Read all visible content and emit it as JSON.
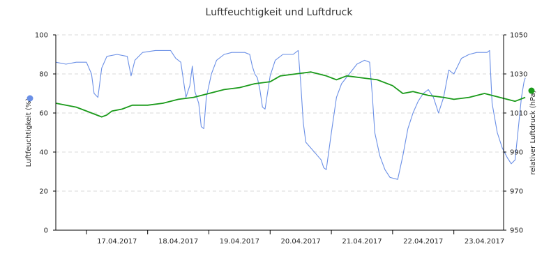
{
  "chart_data": {
    "type": "line",
    "title": "Luftfeuchtigkeit und Luftdruck",
    "x_axis": {
      "range": [
        "2017-04-16T12:00",
        "2017-04-23T19:30"
      ],
      "tick_labels": [
        "17.04.2017",
        "18.04.2017",
        "19.04.2017",
        "20.04.2017",
        "21.04.2017",
        "22.04.2017",
        "23.04.2017"
      ]
    },
    "y_left": {
      "label": "Luftfeuchtigkeit (%)",
      "ylim": [
        0,
        100
      ],
      "tick_labels": [
        "0",
        "20",
        "40",
        "60",
        "80",
        "100"
      ],
      "grid": true
    },
    "y_right": {
      "label": "relativer Luftdruck (hPa)",
      "ylim": [
        950,
        1050
      ],
      "tick_labels": [
        "950",
        "970",
        "990",
        "1010",
        "1030",
        "1050"
      ]
    },
    "legend": {
      "left_marker_color": "#6a8fe6",
      "right_marker_color": "#1a9a1a"
    },
    "series": [
      {
        "axis": "left",
        "color": "#6a8fe6",
        "points": [
          [
            "2017-04-16T12:00",
            86
          ],
          [
            "2017-04-16T16:00",
            85
          ],
          [
            "2017-04-16T20:00",
            86
          ],
          [
            "2017-04-17T00:00",
            86
          ],
          [
            "2017-04-17T02:00",
            80
          ],
          [
            "2017-04-17T03:00",
            70
          ],
          [
            "2017-04-17T04:30",
            68
          ],
          [
            "2017-04-17T06:00",
            83
          ],
          [
            "2017-04-17T08:00",
            89
          ],
          [
            "2017-04-17T12:00",
            90
          ],
          [
            "2017-04-17T16:00",
            89
          ],
          [
            "2017-04-17T17:30",
            79
          ],
          [
            "2017-04-17T19:00",
            87
          ],
          [
            "2017-04-17T22:00",
            91
          ],
          [
            "2017-04-18T03:00",
            92
          ],
          [
            "2017-04-18T09:00",
            92
          ],
          [
            "2017-04-18T11:00",
            88
          ],
          [
            "2017-04-18T13:00",
            86
          ],
          [
            "2017-04-18T15:00",
            68
          ],
          [
            "2017-04-18T16:30",
            74
          ],
          [
            "2017-04-18T17:30",
            84
          ],
          [
            "2017-04-18T18:30",
            71
          ],
          [
            "2017-04-18T20:00",
            65
          ],
          [
            "2017-04-18T21:00",
            53
          ],
          [
            "2017-04-18T22:00",
            52
          ],
          [
            "2017-04-18T23:00",
            68
          ],
          [
            "2017-04-19T01:00",
            80
          ],
          [
            "2017-04-19T03:00",
            87
          ],
          [
            "2017-04-19T06:00",
            90
          ],
          [
            "2017-04-19T09:00",
            91
          ],
          [
            "2017-04-19T14:00",
            91
          ],
          [
            "2017-04-19T16:00",
            90
          ],
          [
            "2017-04-19T17:00",
            84
          ],
          [
            "2017-04-19T18:00",
            80
          ],
          [
            "2017-04-19T19:00",
            78
          ],
          [
            "2017-04-19T20:00",
            72
          ],
          [
            "2017-04-19T21:00",
            63
          ],
          [
            "2017-04-19T22:00",
            62
          ],
          [
            "2017-04-20T00:00",
            79
          ],
          [
            "2017-04-20T02:00",
            87
          ],
          [
            "2017-04-20T05:00",
            90
          ],
          [
            "2017-04-20T09:00",
            90
          ],
          [
            "2017-04-20T11:00",
            92
          ],
          [
            "2017-04-20T12:00",
            75
          ],
          [
            "2017-04-20T13:00",
            55
          ],
          [
            "2017-04-20T14:00",
            45
          ],
          [
            "2017-04-20T16:00",
            42
          ],
          [
            "2017-04-20T18:00",
            39
          ],
          [
            "2017-04-20T20:00",
            36
          ],
          [
            "2017-04-20T21:00",
            32
          ],
          [
            "2017-04-20T22:00",
            31
          ],
          [
            "2017-04-21T00:00",
            50
          ],
          [
            "2017-04-21T02:00",
            68
          ],
          [
            "2017-04-21T04:00",
            75
          ],
          [
            "2017-04-21T07:00",
            80
          ],
          [
            "2017-04-21T10:00",
            85
          ],
          [
            "2017-04-21T13:00",
            87
          ],
          [
            "2017-04-21T15:00",
            86
          ],
          [
            "2017-04-21T16:00",
            70
          ],
          [
            "2017-04-21T17:00",
            50
          ],
          [
            "2017-04-21T19:00",
            38
          ],
          [
            "2017-04-21T21:00",
            31
          ],
          [
            "2017-04-21T23:00",
            27
          ],
          [
            "2017-04-22T02:00",
            26
          ],
          [
            "2017-04-22T04:00",
            38
          ],
          [
            "2017-04-22T06:00",
            52
          ],
          [
            "2017-04-22T08:00",
            60
          ],
          [
            "2017-04-22T10:00",
            66
          ],
          [
            "2017-04-22T12:00",
            70
          ],
          [
            "2017-04-22T14:00",
            72
          ],
          [
            "2017-04-22T16:00",
            68
          ],
          [
            "2017-04-22T18:00",
            60
          ],
          [
            "2017-04-22T20:00",
            68
          ],
          [
            "2017-04-22T22:00",
            82
          ],
          [
            "2017-04-23T00:00",
            80
          ],
          [
            "2017-04-23T03:00",
            88
          ],
          [
            "2017-04-23T06:00",
            90
          ],
          [
            "2017-04-23T09:00",
            91
          ],
          [
            "2017-04-23T13:00",
            91
          ],
          [
            "2017-04-23T14:00",
            92
          ],
          [
            "2017-04-23T15:00",
            65
          ],
          [
            "2017-04-23T17:00",
            50
          ],
          [
            "2017-04-23T19:00",
            42
          ],
          [
            "2017-04-23T21:00",
            37
          ],
          [
            "2017-04-23T22:30",
            34
          ],
          [
            "2017-04-24T00:00",
            36
          ],
          [
            "2017-04-24T01:30",
            55
          ],
          [
            "2017-04-24T02:30",
            68
          ],
          [
            "2017-04-24T03:30",
            76
          ],
          [
            "2017-04-24T04:00",
            78
          ]
        ]
      },
      {
        "axis": "right",
        "color": "#1a9a1a",
        "points": [
          [
            "2017-04-16T12:00",
            1015
          ],
          [
            "2017-04-16T20:00",
            1013
          ],
          [
            "2017-04-17T02:00",
            1010
          ],
          [
            "2017-04-17T06:00",
            1008
          ],
          [
            "2017-04-17T08:00",
            1009
          ],
          [
            "2017-04-17T10:00",
            1011
          ],
          [
            "2017-04-17T14:00",
            1012
          ],
          [
            "2017-04-17T18:00",
            1014
          ],
          [
            "2017-04-18T00:00",
            1014
          ],
          [
            "2017-04-18T06:00",
            1015
          ],
          [
            "2017-04-18T12:00",
            1017
          ],
          [
            "2017-04-18T18:00",
            1018
          ],
          [
            "2017-04-19T00:00",
            1020
          ],
          [
            "2017-04-19T06:00",
            1022
          ],
          [
            "2017-04-19T12:00",
            1023
          ],
          [
            "2017-04-19T18:00",
            1025
          ],
          [
            "2017-04-20T00:00",
            1026
          ],
          [
            "2017-04-20T04:00",
            1029
          ],
          [
            "2017-04-20T10:00",
            1030
          ],
          [
            "2017-04-20T16:00",
            1031
          ],
          [
            "2017-04-20T22:00",
            1029
          ],
          [
            "2017-04-21T02:00",
            1027
          ],
          [
            "2017-04-21T06:00",
            1029
          ],
          [
            "2017-04-21T12:00",
            1028
          ],
          [
            "2017-04-21T18:00",
            1027
          ],
          [
            "2017-04-22T00:00",
            1024
          ],
          [
            "2017-04-22T04:00",
            1020
          ],
          [
            "2017-04-22T08:00",
            1021
          ],
          [
            "2017-04-22T14:00",
            1019
          ],
          [
            "2017-04-22T20:00",
            1018
          ],
          [
            "2017-04-23T00:00",
            1017
          ],
          [
            "2017-04-23T06:00",
            1018
          ],
          [
            "2017-04-23T12:00",
            1020
          ],
          [
            "2017-04-23T18:00",
            1018
          ],
          [
            "2017-04-24T00:00",
            1016
          ],
          [
            "2017-04-24T04:00",
            1018
          ]
        ]
      }
    ]
  }
}
